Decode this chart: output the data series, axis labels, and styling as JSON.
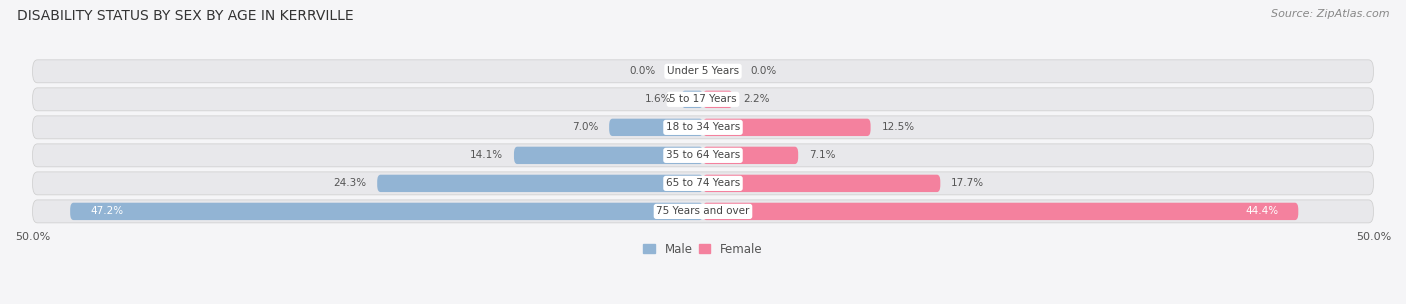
{
  "title": "DISABILITY STATUS BY SEX BY AGE IN KERRVILLE",
  "source": "Source: ZipAtlas.com",
  "categories": [
    "Under 5 Years",
    "5 to 17 Years",
    "18 to 34 Years",
    "35 to 64 Years",
    "65 to 74 Years",
    "75 Years and over"
  ],
  "male_values": [
    0.0,
    1.6,
    7.0,
    14.1,
    24.3,
    47.2
  ],
  "female_values": [
    0.0,
    2.2,
    12.5,
    7.1,
    17.7,
    44.4
  ],
  "male_color": "#92b4d4",
  "female_color": "#f4819e",
  "row_bg_color": "#e8e8eb",
  "fig_bg_color": "#f5f5f7",
  "xlim_min": -50,
  "xlim_max": 50,
  "title_fontsize": 10,
  "source_fontsize": 8,
  "label_fontsize": 7.5,
  "value_fontsize": 7.5,
  "figsize": [
    14.06,
    3.04
  ],
  "dpi": 100
}
